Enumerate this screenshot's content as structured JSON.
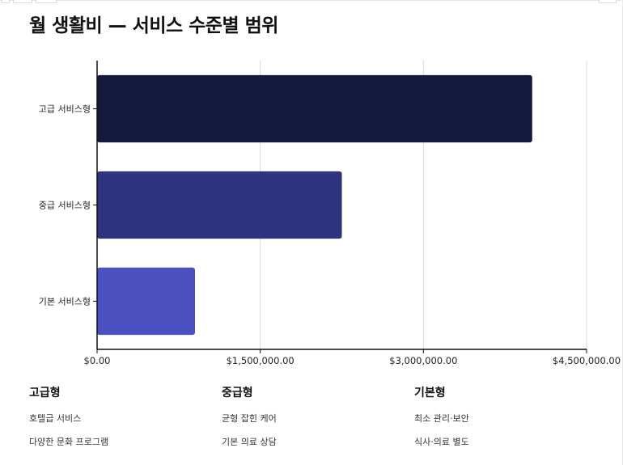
{
  "title": "월 생활비 — 서비스 수준별 범위",
  "chart_data": {
    "type": "bar",
    "orientation": "horizontal",
    "categories": [
      "고급 서비스형",
      "중급 서비스형",
      "기본 서비스형"
    ],
    "values": [
      4000000,
      2250000,
      900000
    ],
    "xlim": [
      0,
      4500000
    ],
    "x_ticks": [
      0,
      1500000,
      3000000,
      4500000
    ],
    "x_tick_labels": [
      "$0.00",
      "$1,500,000.00",
      "$3,000,000.00",
      "$4,500,000.00"
    ],
    "colors": [
      "#151a3d",
      "#2e3380",
      "#4a50bf"
    ],
    "grid": "vertical",
    "xlabel": "",
    "ylabel": ""
  },
  "legend": [
    {
      "title": "고급형",
      "items": [
        "호텔급 서비스",
        "다양한 문화 프로그램"
      ]
    },
    {
      "title": "중급형",
      "items": [
        "균형 잡힌 케어",
        "기본 의료 상담"
      ]
    },
    {
      "title": "기본형",
      "items": [
        "최소 관리·보안",
        "식사·의료 별도"
      ]
    }
  ]
}
